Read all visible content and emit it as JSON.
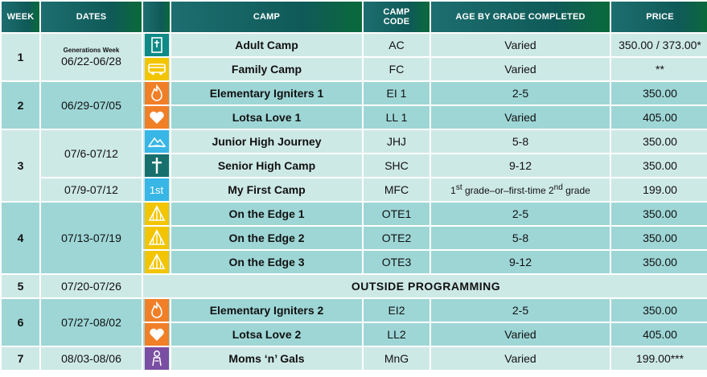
{
  "headers": {
    "week": "WEEK",
    "dates": "DATES",
    "camp": "CAMP",
    "code_l1": "CAMP",
    "code_l2": "CODE",
    "age": "AGE BY GRADE COMPLETED",
    "price": "PRICE"
  },
  "colors": {
    "header": "#0f5a58",
    "row_light": "#cde9e6",
    "row_dark": "#9ed6d6",
    "teal_icon": "#0f8a86",
    "yellow_icon": "#f2c500",
    "orange_icon": "#f07f28",
    "blue_icon": "#38b6e6",
    "purple_icon": "#7a4ea3"
  },
  "weeks": [
    {
      "num": "1",
      "note": "Generations Week",
      "dates": "06/22-06/28"
    },
    {
      "num": "2",
      "dates": "06/29-07/05"
    },
    {
      "num": "3",
      "dates_a": "07/6-07/12",
      "dates_b": "07/9-07/12"
    },
    {
      "num": "4",
      "dates": "07/13-07/19"
    },
    {
      "num": "5",
      "dates": "07/20-07/26",
      "outside": "OUTSIDE PROGRAMMING"
    },
    {
      "num": "6",
      "dates": "07/27-08/02"
    },
    {
      "num": "7",
      "dates": "08/03-08/06"
    }
  ],
  "camps": [
    {
      "icon": "bible-icon",
      "camp": "Adult Camp",
      "code": "AC",
      "age": "Varied",
      "price": "350.00 / 373.00*"
    },
    {
      "icon": "bus-icon",
      "camp": "Family Camp",
      "code": "FC",
      "age": "Varied",
      "price": "**"
    },
    {
      "icon": "flame-icon",
      "camp": "Elementary Igniters 1",
      "code": "EI 1",
      "age": "2-5",
      "price": "350.00"
    },
    {
      "icon": "heart-icon",
      "camp": "Lotsa Love 1",
      "code": "LL 1",
      "age": "Varied",
      "price": "405.00"
    },
    {
      "icon": "mountain-icon",
      "camp": "Junior High Journey",
      "code": "JHJ",
      "age": "5-8",
      "price": "350.00"
    },
    {
      "icon": "cross-icon",
      "camp": "Senior High Camp",
      "code": "SHC",
      "age": "9-12",
      "price": "350.00"
    },
    {
      "icon": "first-icon",
      "icon_text": "1st",
      "camp": "My First Camp",
      "code": "MFC",
      "age_pre": "1",
      "age_sup1": "st",
      "age_mid": " grade–or–first-time 2",
      "age_sup2": "nd",
      "age_post": " grade",
      "price": "199.00"
    },
    {
      "icon": "tent-icon",
      "camp": "On the Edge 1",
      "code": "OTE1",
      "age": "2-5",
      "price": "350.00"
    },
    {
      "icon": "tent-icon",
      "camp": "On the Edge 2",
      "code": "OTE2",
      "age": "5-8",
      "price": "350.00"
    },
    {
      "icon": "tent-icon",
      "camp": "On the Edge 3",
      "code": "OTE3",
      "age": "9-12",
      "price": "350.00"
    },
    {
      "icon": "flame-icon",
      "camp": "Elementary Igniters 2",
      "code": "EI2",
      "age": "2-5",
      "price": "350.00"
    },
    {
      "icon": "heart-icon",
      "camp": "Lotsa Love 2",
      "code": "LL2",
      "age": "Varied",
      "price": "405.00"
    },
    {
      "icon": "woman-icon",
      "camp": "Moms ‘n’ Gals",
      "code": "MnG",
      "age": "Varied",
      "price": "199.00***"
    }
  ]
}
